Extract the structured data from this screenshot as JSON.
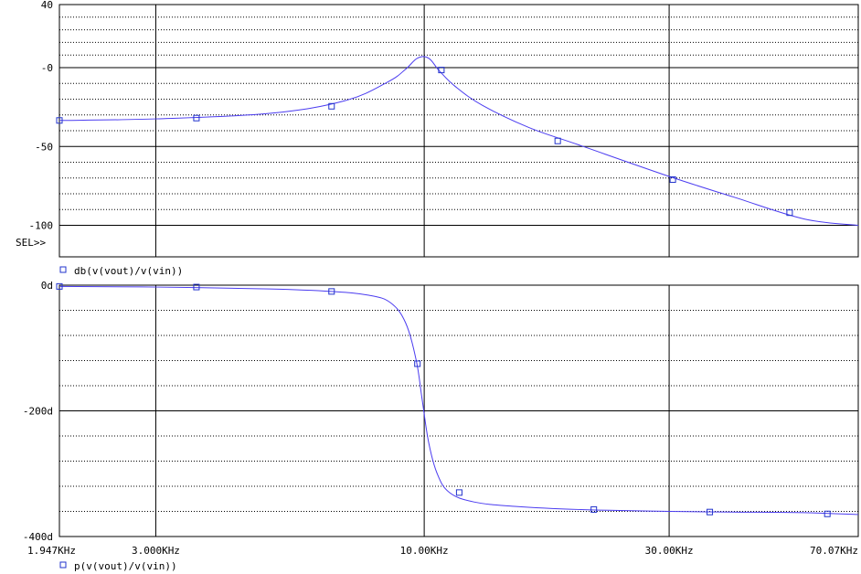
{
  "colors": {
    "trace": "#4b3cf0",
    "marker": "#2233cc",
    "grid": "#000000",
    "background": "#ffffff"
  },
  "sel_label": "SEL>>",
  "x_axis": {
    "scale": "log",
    "range_hz": [
      1947,
      70070
    ],
    "ticks": [
      {
        "hz": 1947,
        "label": "1.947KHz"
      },
      {
        "hz": 3000,
        "label": "3.000KHz"
      },
      {
        "hz": 10000,
        "label": "10.00KHz"
      },
      {
        "hz": 30000,
        "label": "30.00KHz"
      },
      {
        "hz": 70070,
        "label": "70.07KHz"
      }
    ]
  },
  "chart_data": [
    {
      "type": "line",
      "legend": "db(v(vout)/v(vin))",
      "marker_symbol": "square",
      "ylim": [
        -120,
        40
      ],
      "yticks": [
        {
          "value": 40,
          "label": "40"
        },
        {
          "value": 0,
          "label": "-0"
        },
        {
          "value": -50,
          "label": "-50"
        },
        {
          "value": -100,
          "label": "-100"
        }
      ],
      "grid": true,
      "x_hz": [
        1947,
        3000,
        5000,
        7000,
        8500,
        9200,
        9700,
        10200,
        10700,
        11500,
        13000,
        16000,
        20000,
        30000,
        40000,
        55000,
        70070
      ],
      "y_db": [
        -33.5,
        -32.5,
        -29,
        -21,
        -9,
        -1,
        6,
        6,
        -2,
        -12,
        -24,
        -38,
        -49,
        -69,
        -82,
        -96,
        -100
      ],
      "markers": [
        {
          "x_hz": 1947,
          "y": -33.5
        },
        {
          "x_hz": 3600,
          "y": -32
        },
        {
          "x_hz": 6600,
          "y": -24.5
        },
        {
          "x_hz": 10800,
          "y": -1.5
        },
        {
          "x_hz": 18200,
          "y": -46.5
        },
        {
          "x_hz": 30500,
          "y": -71
        },
        {
          "x_hz": 51500,
          "y": -92
        }
      ]
    },
    {
      "type": "line",
      "legend": "p(v(vout)/v(vin))",
      "marker_symbol": "square",
      "ylim": [
        -400,
        0
      ],
      "yticks": [
        {
          "value": 0,
          "label": "0d"
        },
        {
          "value": -200,
          "label": "-200d"
        },
        {
          "value": -400,
          "label": "-400d"
        }
      ],
      "grid": true,
      "x_hz": [
        1947,
        3000,
        5000,
        6600,
        7800,
        8600,
        9200,
        9650,
        9900,
        10200,
        10600,
        11200,
        12500,
        15000,
        20000,
        30000,
        40000,
        55000,
        70070
      ],
      "y_deg": [
        -2,
        -3,
        -6,
        -10,
        -16,
        -28,
        -60,
        -120,
        -180,
        -250,
        -300,
        -330,
        -345,
        -352,
        -357,
        -360,
        -361,
        -362,
        -365
      ],
      "markers": [
        {
          "x_hz": 1947,
          "y": -2
        },
        {
          "x_hz": 3600,
          "y": -3
        },
        {
          "x_hz": 6600,
          "y": -10
        },
        {
          "x_hz": 9700,
          "y": -125
        },
        {
          "x_hz": 11700,
          "y": -330
        },
        {
          "x_hz": 21400,
          "y": -357
        },
        {
          "x_hz": 36000,
          "y": -361
        },
        {
          "x_hz": 61000,
          "y": -364
        }
      ]
    }
  ]
}
